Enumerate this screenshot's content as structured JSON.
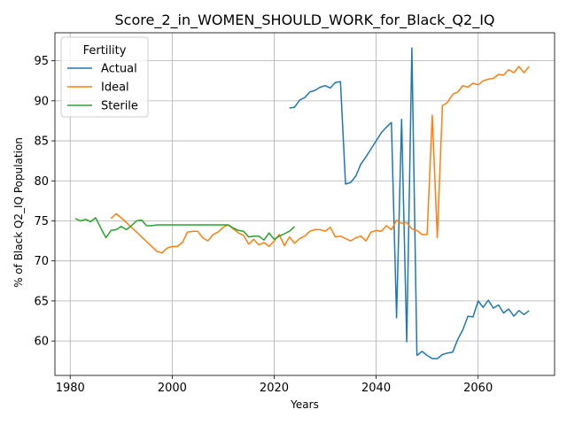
{
  "chart_data": {
    "type": "line",
    "title": "Score_2_in_WOMEN_SHOULD_WORK_for_Black_Q2_IQ",
    "xlabel": "Years",
    "ylabel": "% of Black Q2_IQ Population",
    "xlim": [
      1977,
      2075
    ],
    "ylim": [
      55.7,
      98.5
    ],
    "xticks": [
      1980,
      2000,
      2020,
      2040,
      2060
    ],
    "yticks": [
      60,
      65,
      70,
      75,
      80,
      85,
      90,
      95
    ],
    "grid": true,
    "legend": {
      "title": "Fertility",
      "placement": "top-left"
    },
    "series": [
      {
        "name": "Actual",
        "color": "#1f77b4",
        "points": [
          [
            2023,
            89.1
          ],
          [
            2024,
            89.2
          ],
          [
            2025,
            90.1
          ],
          [
            2026,
            90.4
          ],
          [
            2027,
            91.1
          ],
          [
            2028,
            91.3
          ],
          [
            2029,
            91.7
          ],
          [
            2030,
            91.9
          ],
          [
            2031,
            91.6
          ],
          [
            2032,
            92.3
          ],
          [
            2033,
            92.4
          ],
          [
            2034,
            79.6
          ],
          [
            2035,
            79.8
          ],
          [
            2036,
            80.6
          ],
          [
            2037,
            82.1
          ],
          [
            2038,
            83.0
          ],
          [
            2039,
            84.0
          ],
          [
            2040,
            85.0
          ],
          [
            2041,
            86.0
          ],
          [
            2042,
            86.7
          ],
          [
            2043,
            87.3
          ],
          [
            2044,
            62.9
          ],
          [
            2045,
            87.7
          ],
          [
            2046,
            59.9
          ],
          [
            2047,
            96.6
          ],
          [
            2048,
            58.2
          ],
          [
            2049,
            58.7
          ],
          [
            2050,
            58.2
          ],
          [
            2051,
            57.8
          ],
          [
            2052,
            57.8
          ],
          [
            2053,
            58.3
          ],
          [
            2054,
            58.5
          ],
          [
            2055,
            58.6
          ],
          [
            2056,
            60.2
          ],
          [
            2057,
            61.4
          ],
          [
            2058,
            63.1
          ],
          [
            2059,
            63.0
          ],
          [
            2060,
            65.0
          ],
          [
            2061,
            64.2
          ],
          [
            2062,
            65.1
          ],
          [
            2063,
            64.1
          ],
          [
            2064,
            64.5
          ],
          [
            2065,
            63.5
          ],
          [
            2066,
            64.0
          ],
          [
            2067,
            63.1
          ],
          [
            2068,
            63.8
          ],
          [
            2069,
            63.3
          ],
          [
            2070,
            63.8
          ]
        ]
      },
      {
        "name": "Ideal",
        "color": "#ff7f0e",
        "points": [
          [
            1988,
            75.3
          ],
          [
            1989,
            75.9
          ],
          [
            1990,
            75.4
          ],
          [
            1991,
            74.8
          ],
          [
            1992,
            74.2
          ],
          [
            1993,
            73.6
          ],
          [
            1994,
            73.0
          ],
          [
            1995,
            72.4
          ],
          [
            1996,
            71.8
          ],
          [
            1997,
            71.2
          ],
          [
            1998,
            71.0
          ],
          [
            1999,
            71.6
          ],
          [
            2000,
            71.8
          ],
          [
            2001,
            71.8
          ],
          [
            2002,
            72.3
          ],
          [
            2003,
            73.6
          ],
          [
            2004,
            73.7
          ],
          [
            2005,
            73.7
          ],
          [
            2006,
            72.9
          ],
          [
            2007,
            72.5
          ],
          [
            2008,
            73.3
          ],
          [
            2009,
            73.6
          ],
          [
            2010,
            74.2
          ],
          [
            2011,
            74.5
          ],
          [
            2012,
            74.0
          ],
          [
            2013,
            73.5
          ],
          [
            2014,
            73.2
          ],
          [
            2015,
            72.1
          ],
          [
            2016,
            72.7
          ],
          [
            2017,
            72.0
          ],
          [
            2018,
            72.3
          ],
          [
            2019,
            71.8
          ],
          [
            2020,
            72.5
          ],
          [
            2021,
            73.3
          ],
          [
            2022,
            71.9
          ],
          [
            2023,
            73.0
          ],
          [
            2024,
            72.2
          ],
          [
            2025,
            72.8
          ],
          [
            2026,
            73.1
          ],
          [
            2027,
            73.7
          ],
          [
            2028,
            73.9
          ],
          [
            2029,
            73.9
          ],
          [
            2030,
            73.7
          ],
          [
            2031,
            74.2
          ],
          [
            2032,
            73.0
          ],
          [
            2033,
            73.1
          ],
          [
            2034,
            72.8
          ],
          [
            2035,
            72.5
          ],
          [
            2036,
            72.9
          ],
          [
            2037,
            73.1
          ],
          [
            2038,
            72.5
          ],
          [
            2039,
            73.6
          ],
          [
            2040,
            73.8
          ],
          [
            2041,
            73.7
          ],
          [
            2042,
            74.4
          ],
          [
            2043,
            73.9
          ],
          [
            2044,
            75.1
          ],
          [
            2045,
            74.7
          ],
          [
            2046,
            74.8
          ],
          [
            2047,
            74.0
          ],
          [
            2048,
            73.8
          ],
          [
            2049,
            73.3
          ],
          [
            2050,
            73.3
          ],
          [
            2051,
            88.2
          ],
          [
            2052,
            72.9
          ],
          [
            2053,
            89.4
          ],
          [
            2054,
            89.8
          ],
          [
            2055,
            90.8
          ],
          [
            2056,
            91.1
          ],
          [
            2057,
            91.9
          ],
          [
            2058,
            91.7
          ],
          [
            2059,
            92.2
          ],
          [
            2060,
            92.0
          ],
          [
            2061,
            92.5
          ],
          [
            2062,
            92.7
          ],
          [
            2063,
            92.8
          ],
          [
            2064,
            93.3
          ],
          [
            2065,
            93.2
          ],
          [
            2066,
            93.9
          ],
          [
            2067,
            93.5
          ],
          [
            2068,
            94.3
          ],
          [
            2069,
            93.5
          ],
          [
            2070,
            94.3
          ]
        ]
      },
      {
        "name": "Sterile",
        "color": "#2ca02c",
        "points": [
          [
            1981,
            75.3
          ],
          [
            1982,
            75.0
          ],
          [
            1983,
            75.2
          ],
          [
            1984,
            74.9
          ],
          [
            1985,
            75.4
          ],
          [
            1986,
            74.1
          ],
          [
            1987,
            72.9
          ],
          [
            1988,
            73.8
          ],
          [
            1989,
            73.9
          ],
          [
            1990,
            74.3
          ],
          [
            1991,
            73.9
          ],
          [
            1992,
            74.4
          ],
          [
            1993,
            75.0
          ],
          [
            1994,
            75.1
          ],
          [
            1995,
            74.4
          ],
          [
            1996,
            74.4
          ],
          [
            1997,
            74.5
          ],
          [
            1998,
            74.5
          ],
          [
            1999,
            74.5
          ],
          [
            2000,
            74.5
          ],
          [
            2005,
            74.5
          ],
          [
            2010,
            74.5
          ],
          [
            2011,
            74.5
          ],
          [
            2012,
            74.1
          ],
          [
            2013,
            73.8
          ],
          [
            2014,
            73.7
          ],
          [
            2015,
            73.0
          ],
          [
            2016,
            73.1
          ],
          [
            2017,
            73.1
          ],
          [
            2018,
            72.6
          ],
          [
            2019,
            73.5
          ],
          [
            2020,
            72.7
          ],
          [
            2021,
            73.1
          ],
          [
            2022,
            73.4
          ],
          [
            2023,
            73.7
          ],
          [
            2024,
            74.3
          ]
        ]
      }
    ]
  }
}
